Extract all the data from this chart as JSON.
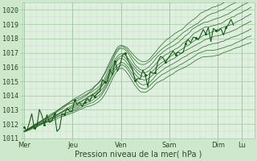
{
  "bg_color": "#cde8cd",
  "plot_bg_color": "#dff0df",
  "grid_color": "#aaccaa",
  "minor_grid_color": "#c4dcc4",
  "line_color": "#1a5c1a",
  "xlabel": "Pression niveau de la mer( hPa )",
  "ylim": [
    1011,
    1020.5
  ],
  "yticks": [
    1011,
    1012,
    1013,
    1014,
    1015,
    1016,
    1017,
    1018,
    1019,
    1020
  ],
  "day_labels": [
    "Mer",
    "Jeu",
    "Ven",
    "Sam",
    "Dim",
    "Lu"
  ],
  "day_positions": [
    0,
    48,
    96,
    144,
    192,
    216
  ],
  "xlim": [
    -2,
    228
  ],
  "tick_fontsize": 6,
  "xlabel_fontsize": 7
}
